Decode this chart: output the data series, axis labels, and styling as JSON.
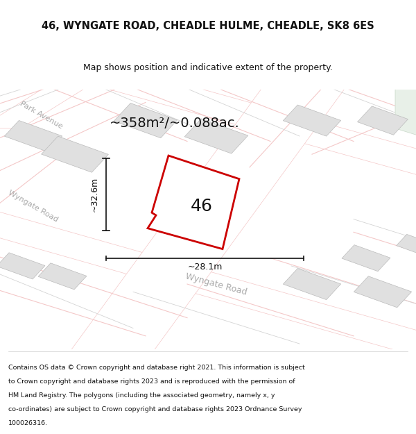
{
  "title_line1": "46, WYNGATE ROAD, CHEADLE HULME, CHEADLE, SK8 6ES",
  "title_line2": "Map shows position and indicative extent of the property.",
  "area_text": "~358m²/~0.088ac.",
  "property_number": "46",
  "dim_vertical": "~32.6m",
  "dim_horizontal": "~28.1m",
  "footer_lines": [
    "Contains OS data © Crown copyright and database right 2021. This information is subject",
    "to Crown copyright and database rights 2023 and is reproduced with the permission of",
    "HM Land Registry. The polygons (including the associated geometry, namely x, y",
    "co-ordinates) are subject to Crown copyright and database rights 2023 Ordnance Survey",
    "100026316."
  ],
  "bg_color": "#f5f5f5",
  "map_bg": "#f2f2f2",
  "road_color_light": "#f4c8c8",
  "road_color_dark": "#d4d4d4",
  "building_color": "#e0e0e0",
  "plot_color": "#cc0000",
  "dim_color": "#111111",
  "road_label_color": "#aaaaaa",
  "title_color": "#111111",
  "footer_color": "#111111"
}
